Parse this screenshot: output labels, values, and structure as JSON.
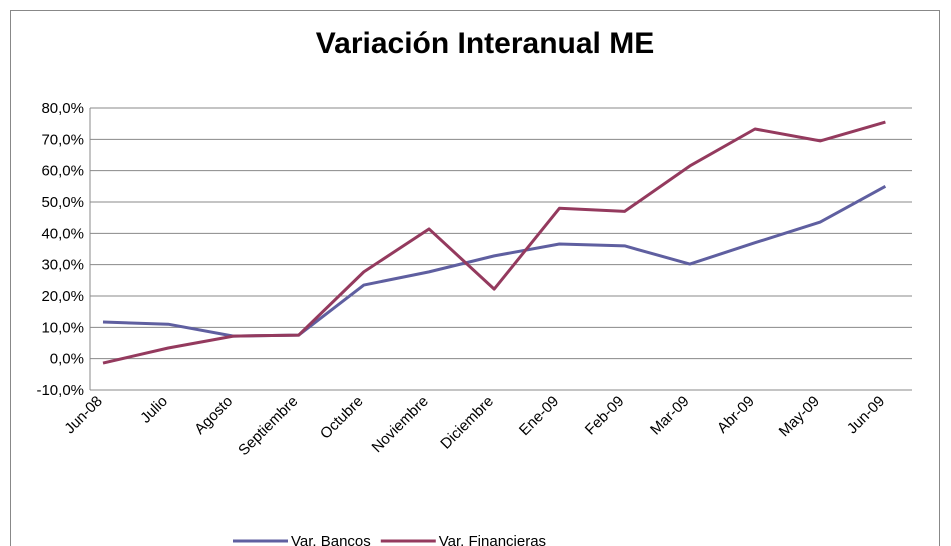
{
  "chart_data": {
    "type": "line",
    "title": "Variación Interanual ME",
    "categories": [
      "Jun-08",
      "Julio",
      "Agosto",
      "Septiembre",
      "Octubre",
      "Noviembre",
      "Diciembre",
      "Ene-09",
      "Feb-09",
      "Mar-09",
      "Abr-09",
      "May-09",
      "Jun-09"
    ],
    "series": [
      {
        "name": "Var. Bancos",
        "color": "#5f5fa0",
        "values": [
          11.7,
          11,
          7.2,
          7.5,
          23.5,
          27.7,
          32.8,
          36.6,
          36,
          30.2,
          37,
          43.6,
          55
        ]
      },
      {
        "name": "Var. Financieras",
        "color": "#943a5e",
        "values": [
          -1.4,
          3.4,
          7.2,
          7.5,
          27.7,
          41.4,
          22.2,
          48,
          47,
          61.5,
          73.3,
          69.5,
          75.5
        ]
      }
    ],
    "ylim": [
      -10,
      80
    ],
    "yticks": [
      {
        "value": -10,
        "label": "-10,0%"
      },
      {
        "value": 0,
        "label": "0,0%"
      },
      {
        "value": 10,
        "label": "10,0%"
      },
      {
        "value": 20,
        "label": "20,0%"
      },
      {
        "value": 30,
        "label": "30,0%"
      },
      {
        "value": 40,
        "label": "40,0%"
      },
      {
        "value": 50,
        "label": "50,0%"
      },
      {
        "value": 60,
        "label": "60,0%"
      },
      {
        "value": 70,
        "label": "70,0%"
      },
      {
        "value": 80,
        "label": "80,0%"
      }
    ],
    "grid": true,
    "legend": "bottom"
  }
}
